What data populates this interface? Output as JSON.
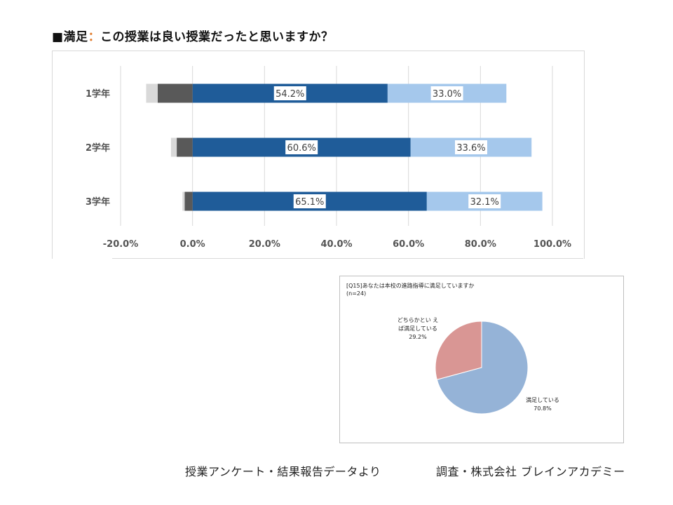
{
  "title": {
    "mark": "■満足",
    "colon": "：",
    "text": "この授業は良い授業だったと思いますか？"
  },
  "colors": {
    "satisfied": "#1f5c99",
    "somewhat_satisfied": "#a5c8ec",
    "somewhat_dissatisfied": "#595959",
    "dissatisfied": "#d9d9d9",
    "pie_satisfied": "#95b3d7",
    "pie_somewhat": "#d99694"
  },
  "chart_data": [
    {
      "type": "bar",
      "orientation": "horizontal",
      "stacked": true,
      "categories": [
        "1学年",
        "2学年",
        "3学年"
      ],
      "series": [
        {
          "values": [
            54.2,
            60.6,
            65.1
          ]
        },
        {
          "values": [
            33.0,
            33.6,
            32.1
          ]
        },
        {
          "values": [
            -9.7,
            -4.4,
            -2.2
          ]
        },
        {
          "values": [
            -3.2,
            -1.6,
            -0.6
          ]
        }
      ],
      "data_labels": [
        [
          "54.2%",
          "60.6%",
          "65.1%"
        ],
        [
          "33.0%",
          "33.6%",
          "32.1%"
        ]
      ],
      "xticks": [
        "-20.0%",
        "0.0%",
        "20.0%",
        "40.0%",
        "60.0%",
        "80.0%",
        "100.0%"
      ],
      "xlim": [
        -20,
        100
      ],
      "grid": true
    },
    {
      "type": "pie",
      "title": "[Q15]あなたは本校の進路指導に満足していますか",
      "subtitle": "(n=24)",
      "slices": [
        {
          "label": "満足している",
          "value": 70.8,
          "value_label": "70.8%"
        },
        {
          "label_line1": "どちらかとい え",
          "label_line2": "ば満足している",
          "value": 29.2,
          "value_label": "29.2%"
        }
      ]
    }
  ],
  "footer": {
    "source": "授業アンケート・結果報告データより",
    "credit": "調査・株式会社 ブレインアカデミー"
  }
}
